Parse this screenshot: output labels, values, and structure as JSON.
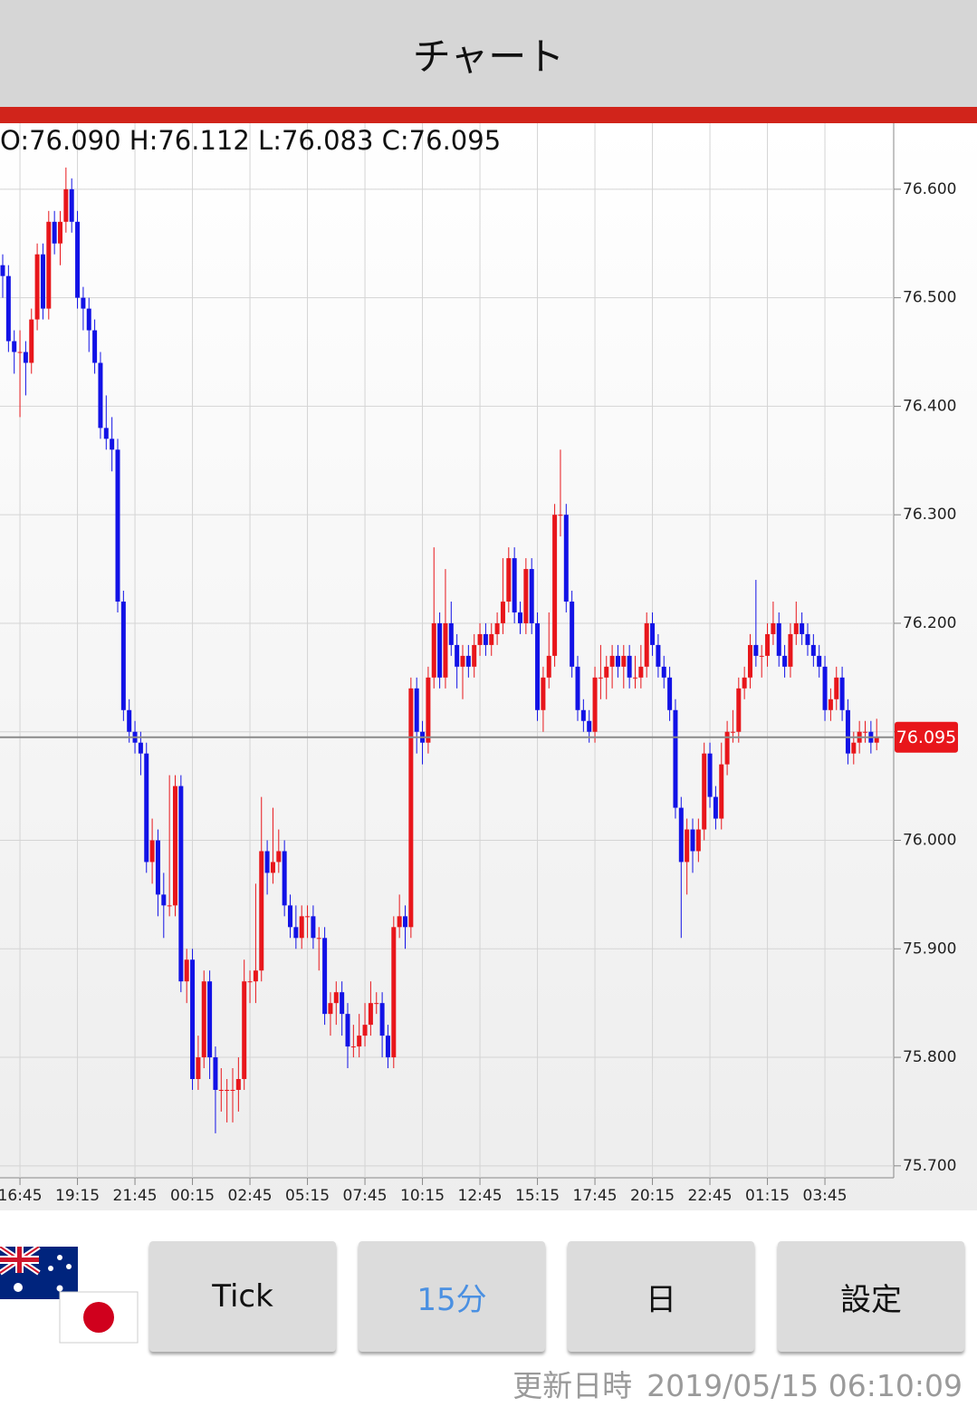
{
  "header": {
    "title": "チャート"
  },
  "chart_data": {
    "type": "candlestick",
    "ohlc_label": "O:76.090 H:76.112 L:76.083 C:76.095",
    "up_color": "#e8161b",
    "down_color": "#1212e6",
    "grid": true,
    "ylim": [
      75.689,
      76.66
    ],
    "yticks": [
      {
        "value": 75.7,
        "label": "75.700"
      },
      {
        "value": 75.8,
        "label": "75.800"
      },
      {
        "value": 75.9,
        "label": "75.900"
      },
      {
        "value": 76.0,
        "label": "76.000"
      },
      {
        "value": 76.1,
        "label": "76.100"
      },
      {
        "value": 76.2,
        "label": "76.200"
      },
      {
        "value": 76.3,
        "label": "76.300"
      },
      {
        "value": 76.4,
        "label": "76.400"
      },
      {
        "value": 76.5,
        "label": "76.500"
      },
      {
        "value": 76.6,
        "label": "76.600"
      }
    ],
    "last_price": {
      "value": 76.095,
      "label": "76.095"
    },
    "categories": [
      null,
      null,
      null,
      "16:45",
      null,
      null,
      null,
      null,
      null,
      null,
      null,
      null,
      null,
      "19:15",
      null,
      null,
      null,
      null,
      null,
      null,
      null,
      null,
      null,
      "21:45",
      null,
      null,
      null,
      null,
      null,
      null,
      null,
      null,
      null,
      "00:15",
      null,
      null,
      null,
      null,
      null,
      null,
      null,
      null,
      null,
      "02:45",
      null,
      null,
      null,
      null,
      null,
      null,
      null,
      null,
      null,
      "05:15",
      null,
      null,
      null,
      null,
      null,
      null,
      null,
      null,
      null,
      "07:45",
      null,
      null,
      null,
      null,
      null,
      null,
      null,
      null,
      null,
      "10:15",
      null,
      null,
      null,
      null,
      null,
      null,
      null,
      null,
      null,
      "12:45",
      null,
      null,
      null,
      null,
      null,
      null,
      null,
      null,
      null,
      "15:15",
      null,
      null,
      null,
      null,
      null,
      null,
      null,
      null,
      null,
      "17:45",
      null,
      null,
      null,
      null,
      null,
      null,
      null,
      null,
      null,
      "20:15",
      null,
      null,
      null,
      null,
      null,
      null,
      null,
      null,
      null,
      "22:45",
      null,
      null,
      null,
      null,
      null,
      null,
      null,
      null,
      null,
      "01:15",
      null,
      null,
      null,
      null,
      null,
      null,
      null,
      null,
      null,
      "03:45",
      null,
      null,
      null,
      null,
      null,
      null,
      null,
      null,
      null
    ],
    "candles": [
      [
        76.53,
        76.54,
        76.5,
        76.52
      ],
      [
        76.52,
        76.53,
        76.45,
        76.46
      ],
      [
        76.46,
        76.47,
        76.43,
        76.45
      ],
      [
        76.45,
        76.47,
        76.39,
        76.45
      ],
      [
        76.45,
        76.46,
        76.41,
        76.44
      ],
      [
        76.44,
        76.49,
        76.43,
        76.48
      ],
      [
        76.48,
        76.55,
        76.47,
        76.54
      ],
      [
        76.54,
        76.55,
        76.48,
        76.49
      ],
      [
        76.49,
        76.58,
        76.48,
        76.57
      ],
      [
        76.57,
        76.58,
        76.54,
        76.55
      ],
      [
        76.55,
        76.58,
        76.53,
        76.57
      ],
      [
        76.57,
        76.62,
        76.56,
        76.6
      ],
      [
        76.6,
        76.61,
        76.56,
        76.57
      ],
      [
        76.57,
        76.58,
        76.49,
        76.5
      ],
      [
        76.5,
        76.51,
        76.47,
        76.49
      ],
      [
        76.49,
        76.5,
        76.45,
        76.47
      ],
      [
        76.47,
        76.48,
        76.43,
        76.44
      ],
      [
        76.44,
        76.45,
        76.37,
        76.38
      ],
      [
        76.38,
        76.41,
        76.36,
        76.37
      ],
      [
        76.37,
        76.39,
        76.34,
        76.36
      ],
      [
        76.36,
        76.37,
        76.21,
        76.22
      ],
      [
        76.22,
        76.23,
        76.11,
        76.12
      ],
      [
        76.12,
        76.13,
        76.09,
        76.1
      ],
      [
        76.1,
        76.11,
        76.08,
        76.09
      ],
      [
        76.09,
        76.1,
        76.06,
        76.08
      ],
      [
        76.08,
        76.09,
        75.97,
        75.98
      ],
      [
        75.98,
        76.02,
        75.96,
        76.0
      ],
      [
        76.0,
        76.01,
        75.93,
        75.95
      ],
      [
        75.95,
        75.97,
        75.91,
        75.94
      ],
      [
        75.94,
        76.06,
        75.93,
        75.94
      ],
      [
        75.94,
        76.06,
        75.93,
        76.05
      ],
      [
        76.05,
        76.06,
        75.86,
        75.87
      ],
      [
        75.87,
        75.9,
        75.85,
        75.89
      ],
      [
        75.89,
        75.9,
        75.77,
        75.78
      ],
      [
        75.78,
        75.82,
        75.77,
        75.8
      ],
      [
        75.8,
        75.88,
        75.79,
        75.87
      ],
      [
        75.87,
        75.88,
        75.78,
        75.8
      ],
      [
        75.8,
        75.81,
        75.73,
        75.77
      ],
      [
        75.77,
        75.79,
        75.75,
        75.77
      ],
      [
        75.77,
        75.78,
        75.74,
        75.77
      ],
      [
        75.77,
        75.79,
        75.74,
        75.77
      ],
      [
        75.77,
        75.8,
        75.75,
        75.78
      ],
      [
        75.78,
        75.89,
        75.77,
        75.87
      ],
      [
        75.87,
        75.88,
        75.85,
        75.87
      ],
      [
        75.87,
        75.96,
        75.85,
        75.88
      ],
      [
        75.88,
        76.04,
        75.87,
        75.99
      ],
      [
        75.99,
        76.0,
        75.95,
        75.97
      ],
      [
        75.97,
        76.03,
        75.96,
        75.98
      ],
      [
        75.98,
        76.01,
        75.97,
        75.99
      ],
      [
        75.99,
        76.0,
        75.93,
        75.94
      ],
      [
        75.94,
        75.95,
        75.91,
        75.92
      ],
      [
        75.92,
        75.94,
        75.9,
        75.91
      ],
      [
        75.91,
        75.94,
        75.9,
        75.93
      ],
      [
        75.93,
        75.94,
        75.91,
        75.93
      ],
      [
        75.93,
        75.94,
        75.9,
        75.91
      ],
      [
        75.91,
        75.92,
        75.88,
        75.91
      ],
      [
        75.91,
        75.92,
        75.83,
        75.84
      ],
      [
        75.84,
        75.86,
        75.82,
        75.85
      ],
      [
        75.85,
        75.87,
        75.83,
        75.86
      ],
      [
        75.86,
        75.87,
        75.82,
        75.84
      ],
      [
        75.84,
        75.85,
        75.79,
        75.81
      ],
      [
        75.81,
        75.83,
        75.8,
        75.81
      ],
      [
        75.81,
        75.84,
        75.8,
        75.82
      ],
      [
        75.82,
        75.85,
        75.81,
        75.83
      ],
      [
        75.83,
        75.87,
        75.82,
        75.85
      ],
      [
        75.85,
        75.86,
        75.84,
        75.85
      ],
      [
        75.85,
        75.86,
        75.8,
        75.82
      ],
      [
        75.82,
        75.83,
        75.79,
        75.8
      ],
      [
        75.8,
        75.93,
        75.79,
        75.92
      ],
      [
        75.92,
        75.95,
        75.91,
        75.93
      ],
      [
        75.93,
        75.94,
        75.9,
        75.92
      ],
      [
        75.92,
        76.15,
        75.91,
        76.14
      ],
      [
        76.14,
        76.15,
        76.08,
        76.1
      ],
      [
        76.1,
        76.11,
        76.07,
        76.09
      ],
      [
        76.09,
        76.16,
        76.08,
        76.15
      ],
      [
        76.15,
        76.27,
        76.14,
        76.2
      ],
      [
        76.2,
        76.21,
        76.14,
        76.15
      ],
      [
        76.15,
        76.25,
        76.14,
        76.2
      ],
      [
        76.2,
        76.22,
        76.17,
        76.18
      ],
      [
        76.18,
        76.19,
        76.14,
        76.16
      ],
      [
        76.16,
        76.18,
        76.13,
        76.17
      ],
      [
        76.17,
        76.18,
        76.15,
        76.16
      ],
      [
        76.16,
        76.19,
        76.15,
        76.18
      ],
      [
        76.18,
        76.2,
        76.17,
        76.19
      ],
      [
        76.19,
        76.2,
        76.17,
        76.18
      ],
      [
        76.18,
        76.2,
        76.17,
        76.19
      ],
      [
        76.19,
        76.21,
        76.18,
        76.2
      ],
      [
        76.2,
        76.26,
        76.19,
        76.22
      ],
      [
        76.22,
        76.27,
        76.21,
        76.26
      ],
      [
        76.26,
        76.27,
        76.2,
        76.21
      ],
      [
        76.21,
        76.22,
        76.19,
        76.2
      ],
      [
        76.2,
        76.26,
        76.19,
        76.25
      ],
      [
        76.25,
        76.26,
        76.19,
        76.2
      ],
      [
        76.2,
        76.21,
        76.11,
        76.12
      ],
      [
        76.12,
        76.16,
        76.1,
        76.15
      ],
      [
        76.15,
        76.21,
        76.14,
        76.17
      ],
      [
        76.17,
        76.31,
        76.16,
        76.3
      ],
      [
        76.3,
        76.36,
        76.28,
        76.3
      ],
      [
        76.3,
        76.31,
        76.21,
        76.22
      ],
      [
        76.22,
        76.23,
        76.15,
        76.16
      ],
      [
        76.16,
        76.17,
        76.11,
        76.12
      ],
      [
        76.12,
        76.13,
        76.1,
        76.11
      ],
      [
        76.11,
        76.12,
        76.09,
        76.1
      ],
      [
        76.1,
        76.16,
        76.09,
        76.15
      ],
      [
        76.15,
        76.18,
        76.13,
        76.15
      ],
      [
        76.15,
        76.17,
        76.13,
        76.16
      ],
      [
        76.16,
        76.18,
        76.14,
        76.17
      ],
      [
        76.17,
        76.18,
        76.15,
        76.16
      ],
      [
        76.16,
        76.18,
        76.14,
        76.17
      ],
      [
        76.17,
        76.18,
        76.14,
        76.15
      ],
      [
        76.15,
        76.17,
        76.14,
        76.15
      ],
      [
        76.15,
        76.18,
        76.14,
        76.16
      ],
      [
        76.16,
        76.21,
        76.15,
        76.2
      ],
      [
        76.2,
        76.21,
        76.17,
        76.18
      ],
      [
        76.18,
        76.19,
        76.15,
        76.16
      ],
      [
        76.16,
        76.17,
        76.14,
        76.15
      ],
      [
        76.15,
        76.16,
        76.11,
        76.12
      ],
      [
        76.12,
        76.13,
        76.02,
        76.03
      ],
      [
        76.03,
        76.04,
        75.91,
        75.98
      ],
      [
        75.98,
        76.02,
        75.95,
        76.01
      ],
      [
        76.01,
        76.02,
        75.97,
        75.99
      ],
      [
        75.99,
        76.02,
        75.98,
        76.01
      ],
      [
        76.01,
        76.09,
        76.0,
        76.08
      ],
      [
        76.08,
        76.09,
        76.03,
        76.04
      ],
      [
        76.04,
        76.05,
        76.01,
        76.02
      ],
      [
        76.02,
        76.09,
        76.01,
        76.07
      ],
      [
        76.07,
        76.11,
        76.06,
        76.1
      ],
      [
        76.1,
        76.12,
        76.09,
        76.1
      ],
      [
        76.1,
        76.15,
        76.09,
        76.14
      ],
      [
        76.14,
        76.16,
        76.13,
        76.15
      ],
      [
        76.15,
        76.19,
        76.14,
        76.18
      ],
      [
        76.18,
        76.24,
        76.16,
        76.17
      ],
      [
        76.17,
        76.18,
        76.15,
        76.17
      ],
      [
        76.17,
        76.2,
        76.16,
        76.19
      ],
      [
        76.19,
        76.22,
        76.18,
        76.2
      ],
      [
        76.2,
        76.21,
        76.16,
        76.17
      ],
      [
        76.17,
        76.18,
        76.15,
        76.16
      ],
      [
        76.16,
        76.2,
        76.15,
        76.19
      ],
      [
        76.19,
        76.22,
        76.18,
        76.2
      ],
      [
        76.2,
        76.21,
        76.18,
        76.19
      ],
      [
        76.19,
        76.2,
        76.17,
        76.18
      ],
      [
        76.18,
        76.19,
        76.16,
        76.17
      ],
      [
        76.17,
        76.18,
        76.15,
        76.16
      ],
      [
        76.16,
        76.17,
        76.11,
        76.12
      ],
      [
        76.12,
        76.14,
        76.11,
        76.13
      ],
      [
        76.13,
        76.16,
        76.12,
        76.15
      ],
      [
        76.15,
        76.16,
        76.11,
        76.12
      ],
      [
        76.12,
        76.13,
        76.07,
        76.08
      ],
      [
        76.08,
        76.1,
        76.07,
        76.09
      ],
      [
        76.09,
        76.11,
        76.08,
        76.1
      ],
      [
        76.1,
        76.11,
        76.09,
        76.1
      ],
      [
        76.1,
        76.11,
        76.08,
        76.09
      ],
      [
        76.09,
        76.112,
        76.083,
        76.095
      ]
    ]
  },
  "buttons": [
    "Tick",
    "15分",
    "日",
    "設定"
  ],
  "footer": {
    "label": "更新日時",
    "timestamp": "2019/05/15 06:10:09"
  }
}
